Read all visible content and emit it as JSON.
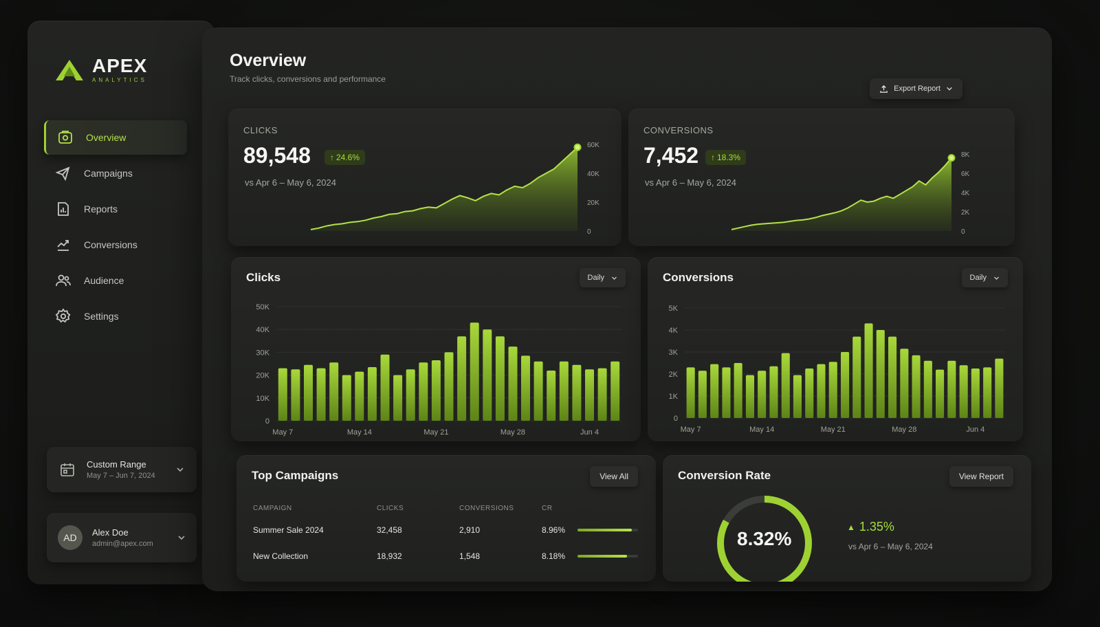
{
  "brand": {
    "name": "APEX",
    "tagline": "ANALYTICS"
  },
  "sidebar": {
    "items": [
      {
        "label": "Overview",
        "icon": "overview-icon",
        "active": true
      },
      {
        "label": "Campaigns",
        "icon": "megaphone-icon"
      },
      {
        "label": "Reports",
        "icon": "reports-icon"
      },
      {
        "label": "Conversions",
        "icon": "conversions-icon"
      },
      {
        "label": "Audience",
        "icon": "users-icon"
      },
      {
        "label": "Settings",
        "icon": "gear-icon"
      }
    ],
    "range": {
      "title": "Custom Range",
      "dates": "May 7 – Jun 7, 2024"
    },
    "user": {
      "initials": "AD",
      "name": "Alex Doe",
      "email": "admin@apex.com"
    }
  },
  "header": {
    "title": "Overview",
    "subtitle": "Track clicks, conversions and performance",
    "export_label": "Export Report"
  },
  "kpis": {
    "clicks": {
      "label": "CLICKS",
      "value": "89,548",
      "delta": "24.6%",
      "compare": "vs Apr 6 – May 6, 2024"
    },
    "conversions": {
      "label": "CONVERSIONS",
      "value": "7,452",
      "delta": "18.3%",
      "compare": "vs Apr 6 – May 6, 2024"
    }
  },
  "panels": {
    "clicks_title": "Clicks",
    "conversions_title": "Conversions",
    "period": "Daily",
    "campaigns_title": "Top Campaigns",
    "view_all": "View All",
    "rate_title": "Conversion Rate",
    "view_report": "View Report"
  },
  "campaigns": {
    "headers": [
      "CAMPAIGN",
      "CLICKS",
      "CONVERSIONS",
      "CR"
    ],
    "rows": [
      {
        "name": "Summer Sale 2024",
        "clicks": "32,458",
        "conversions": "2,910",
        "cr": "8.96%",
        "cr_value": 8.96
      },
      {
        "name": "New Collection",
        "clicks": "18,932",
        "conversions": "1,548",
        "cr": "8.18%",
        "cr_value": 8.18
      }
    ]
  },
  "conversion_rate": {
    "value": "8.32%",
    "rate": 8.32,
    "delta": "1.35%",
    "compare": "vs Apr 6 – May 6, 2024"
  },
  "colors": {
    "accent": "#a9dc3c",
    "accent_dark": "#6f9a1e",
    "bg": "#161715",
    "card": "#232422"
  },
  "chart_data": [
    {
      "type": "area",
      "ylim": [
        0,
        60000
      ],
      "yticks": [
        "0",
        "20K",
        "40K",
        "60K"
      ],
      "y": [
        1000,
        2000,
        3500,
        4500,
        5000,
        6000,
        6500,
        7500,
        9000,
        10000,
        11500,
        12000,
        13500,
        14000,
        15500,
        16500,
        16000,
        19000,
        22000,
        24500,
        23000,
        21000,
        24000,
        26000,
        25000,
        28500,
        31000,
        30000,
        33000,
        37000,
        40000,
        43000,
        48000,
        53000,
        58000
      ]
    },
    {
      "type": "area",
      "ylim": [
        0,
        8000
      ],
      "yticks": [
        "0",
        "2K",
        "4K",
        "6K",
        "8K"
      ],
      "y": [
        150,
        300,
        450,
        600,
        700,
        750,
        800,
        850,
        900,
        1000,
        1100,
        1150,
        1250,
        1400,
        1600,
        1750,
        1900,
        2100,
        2400,
        2800,
        3200,
        3000,
        3100,
        3400,
        3600,
        3400,
        3800,
        4200,
        4600,
        5200,
        4800,
        5500,
        6100,
        6800,
        7600
      ]
    },
    {
      "type": "bar",
      "ylim": [
        0,
        50000
      ],
      "yticks": [
        "0",
        "10K",
        "20K",
        "30K",
        "40K",
        "50K"
      ],
      "xticks": [
        "May 7",
        "May 14",
        "May 21",
        "May 28",
        "Jun 4"
      ],
      "values": [
        23000,
        22500,
        24500,
        23000,
        25500,
        20000,
        21500,
        23500,
        29000,
        20000,
        22500,
        25500,
        26500,
        30000,
        37000,
        43000,
        40000,
        37000,
        32500,
        28500,
        26000,
        22000,
        26000,
        24500,
        22500,
        23000,
        26000
      ]
    },
    {
      "type": "bar",
      "ylim": [
        0,
        5000
      ],
      "yticks": [
        "0",
        "1K",
        "2K",
        "3K",
        "4K",
        "5K"
      ],
      "xticks": [
        "May 7",
        "May 14",
        "May 21",
        "May 28",
        "Jun 4"
      ],
      "values": [
        2300,
        2150,
        2450,
        2300,
        2500,
        1950,
        2150,
        2350,
        2950,
        1950,
        2250,
        2450,
        2550,
        3000,
        3700,
        4300,
        4000,
        3700,
        3150,
        2850,
        2600,
        2200,
        2600,
        2400,
        2250,
        2300,
        2700
      ]
    }
  ]
}
